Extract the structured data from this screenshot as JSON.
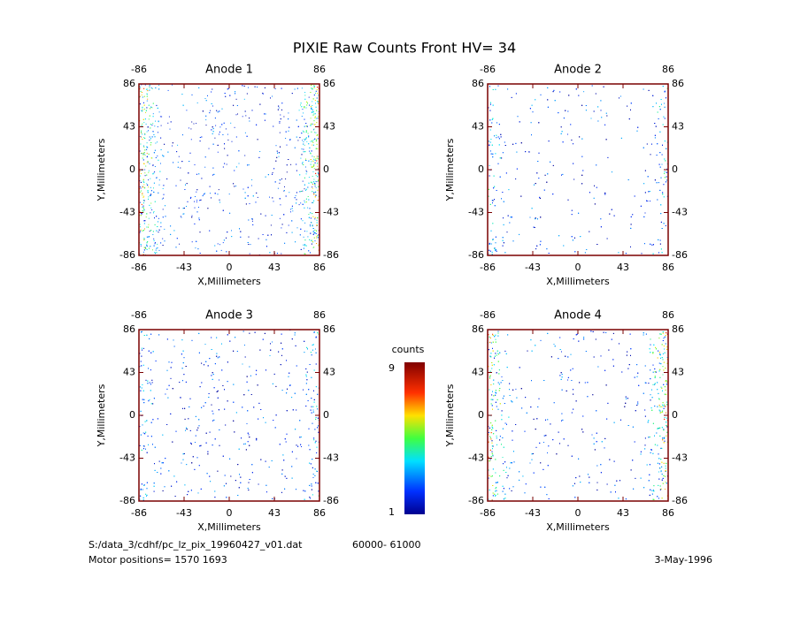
{
  "title": "PIXIE Raw Counts Front HV= 34",
  "chart_data": [
    {
      "type": "heatmap",
      "title": "Anode 1",
      "xlabel": "X,Millimeters",
      "ylabel": "Y,Millimeters",
      "xlim": [
        -86,
        86
      ],
      "ylim": [
        -86,
        86
      ],
      "xticks": [
        -86,
        -43,
        0,
        43,
        86
      ],
      "yticks": [
        -86,
        -43,
        0,
        43,
        86
      ]
    },
    {
      "type": "heatmap",
      "title": "Anode 2",
      "xlabel": "X,Millimeters",
      "ylabel": "Y,Millimeters",
      "xlim": [
        -86,
        86
      ],
      "ylim": [
        -86,
        86
      ],
      "xticks": [
        -86,
        -43,
        0,
        43,
        86
      ],
      "yticks": [
        -86,
        -43,
        0,
        43,
        86
      ]
    },
    {
      "type": "heatmap",
      "title": "Anode 3",
      "xlabel": "X,Millimeters",
      "ylabel": "Y,Millimeters",
      "xlim": [
        -86,
        86
      ],
      "ylim": [
        -86,
        86
      ],
      "xticks": [
        -86,
        -43,
        0,
        43,
        86
      ],
      "yticks": [
        -86,
        -43,
        0,
        43,
        86
      ]
    },
    {
      "type": "heatmap",
      "title": "Anode 4",
      "xlabel": "X,Millimeters",
      "ylabel": "Y,Millimeters",
      "xlim": [
        -86,
        86
      ],
      "ylim": [
        -86,
        86
      ],
      "xticks": [
        -86,
        -43,
        0,
        43,
        86
      ],
      "yticks": [
        -86,
        -43,
        0,
        43,
        86
      ]
    }
  ],
  "colorbar": {
    "label": "counts",
    "lim": [
      1,
      9
    ],
    "ticks": [
      1,
      9
    ]
  },
  "footer": {
    "file": "S:/data_3/cdhf/pc_lz_pix_19960427_v01.dat",
    "range": "60000- 61000",
    "motor": "Motor positions= 1570 1693",
    "date": "3-May-1996"
  }
}
